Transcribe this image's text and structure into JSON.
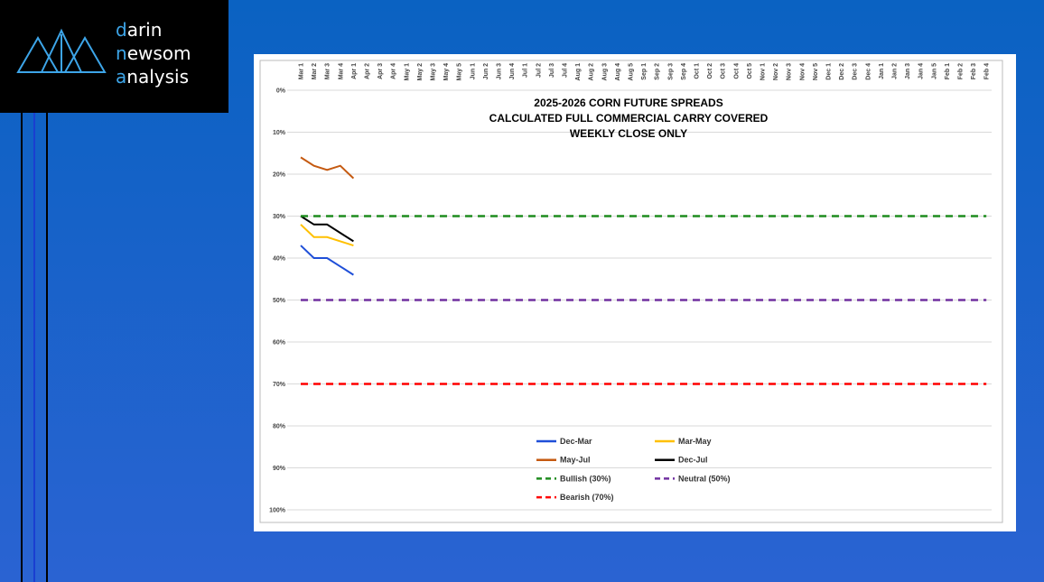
{
  "logo": {
    "lines": [
      "darin",
      "newsom",
      "analysis"
    ]
  },
  "chart_data": {
    "type": "line",
    "title": [
      "2025-2026 CORN FUTURE SPREADS",
      "CALCULATED FULL COMMERCIAL CARRY COVERED",
      "WEEKLY CLOSE ONLY"
    ],
    "categories": [
      "Mar 1",
      "Mar 2",
      "Mar 3",
      "Mar 4",
      "Apr 1",
      "Apr 2",
      "Apr 3",
      "Apr 4",
      "May 1",
      "May 2",
      "May 3",
      "May 4",
      "May 5",
      "Jun 1",
      "Jun 2",
      "Jun 3",
      "Jun 4",
      "Jul 1",
      "Jul 2",
      "Jul 3",
      "Jul 4",
      "Aug 1",
      "Aug 2",
      "Aug 3",
      "Aug 4",
      "Aug 5",
      "Sep 1",
      "Sep 2",
      "Sep 3",
      "Sep 4",
      "Oct 1",
      "Oct 2",
      "Oct 3",
      "Oct 4",
      "Oct 5",
      "Nov 1",
      "Nov 2",
      "Nov 3",
      "Nov 4",
      "Nov 5",
      "Dec 1",
      "Dec 2",
      "Dec 3",
      "Dec 4",
      "Jan 1",
      "Jan 2",
      "Jan 3",
      "Jan 4",
      "Jan 5",
      "Feb 1",
      "Feb 2",
      "Feb 3",
      "Feb 4"
    ],
    "ylim": [
      100,
      0
    ],
    "yticks": [
      {
        "value": 0,
        "label": "0%"
      },
      {
        "value": 10,
        "label": "10%"
      },
      {
        "value": 20,
        "label": "20%"
      },
      {
        "value": 30,
        "label": "30%"
      },
      {
        "value": 40,
        "label": "40%"
      },
      {
        "value": 50,
        "label": "50%"
      },
      {
        "value": 60,
        "label": "60%"
      },
      {
        "value": 70,
        "label": "70%"
      },
      {
        "value": 80,
        "label": "80%"
      },
      {
        "value": 90,
        "label": "90%"
      },
      {
        "value": 100,
        "label": "100%"
      }
    ],
    "grid": true,
    "series": [
      {
        "name": "Dec-Mar",
        "color": "#1f4fd8",
        "dash": false,
        "values": [
          37,
          40,
          40,
          42,
          44,
          null,
          null,
          null,
          null,
          null,
          null,
          null,
          null,
          null,
          null,
          null,
          null,
          null,
          null,
          null,
          null,
          null,
          null,
          null,
          null,
          null,
          null,
          null,
          null,
          null,
          null,
          null,
          null,
          null,
          null,
          null,
          null,
          null,
          null,
          null,
          null,
          null,
          null,
          null,
          null,
          null,
          null,
          null,
          null,
          null,
          null,
          null,
          null
        ]
      },
      {
        "name": "Mar-May",
        "color": "#ffc000",
        "dash": false,
        "values": [
          32,
          35,
          35,
          36,
          37,
          null,
          null,
          null,
          null,
          null,
          null,
          null,
          null,
          null,
          null,
          null,
          null,
          null,
          null,
          null,
          null,
          null,
          null,
          null,
          null,
          null,
          null,
          null,
          null,
          null,
          null,
          null,
          null,
          null,
          null,
          null,
          null,
          null,
          null,
          null,
          null,
          null,
          null,
          null,
          null,
          null,
          null,
          null,
          null,
          null,
          null,
          null,
          null
        ]
      },
      {
        "name": "May-Jul",
        "color": "#c55a11",
        "dash": false,
        "values": [
          16,
          18,
          19,
          18,
          21,
          null,
          null,
          null,
          null,
          null,
          null,
          null,
          null,
          null,
          null,
          null,
          null,
          null,
          null,
          null,
          null,
          null,
          null,
          null,
          null,
          null,
          null,
          null,
          null,
          null,
          null,
          null,
          null,
          null,
          null,
          null,
          null,
          null,
          null,
          null,
          null,
          null,
          null,
          null,
          null,
          null,
          null,
          null,
          null,
          null,
          null,
          null,
          null
        ]
      },
      {
        "name": "Dec-Jul",
        "color": "#000000",
        "dash": false,
        "values": [
          30,
          32,
          32,
          34,
          36,
          null,
          null,
          null,
          null,
          null,
          null,
          null,
          null,
          null,
          null,
          null,
          null,
          null,
          null,
          null,
          null,
          null,
          null,
          null,
          null,
          null,
          null,
          null,
          null,
          null,
          null,
          null,
          null,
          null,
          null,
          null,
          null,
          null,
          null,
          null,
          null,
          null,
          null,
          null,
          null,
          null,
          null,
          null,
          null,
          null,
          null,
          null,
          null
        ]
      },
      {
        "name": "Bullish (30%)",
        "color": "#1e8c1e",
        "dash": true,
        "values": [
          30,
          30,
          30,
          30,
          30,
          30,
          30,
          30,
          30,
          30,
          30,
          30,
          30,
          30,
          30,
          30,
          30,
          30,
          30,
          30,
          30,
          30,
          30,
          30,
          30,
          30,
          30,
          30,
          30,
          30,
          30,
          30,
          30,
          30,
          30,
          30,
          30,
          30,
          30,
          30,
          30,
          30,
          30,
          30,
          30,
          30,
          30,
          30,
          30,
          30,
          30,
          30,
          30
        ]
      },
      {
        "name": "Neutral (50%)",
        "color": "#7030a0",
        "dash": true,
        "values": [
          50,
          50,
          50,
          50,
          50,
          50,
          50,
          50,
          50,
          50,
          50,
          50,
          50,
          50,
          50,
          50,
          50,
          50,
          50,
          50,
          50,
          50,
          50,
          50,
          50,
          50,
          50,
          50,
          50,
          50,
          50,
          50,
          50,
          50,
          50,
          50,
          50,
          50,
          50,
          50,
          50,
          50,
          50,
          50,
          50,
          50,
          50,
          50,
          50,
          50,
          50,
          50,
          50
        ]
      },
      {
        "name": "Bearish (70%)",
        "color": "#ff0000",
        "dash": true,
        "values": [
          70,
          70,
          70,
          70,
          70,
          70,
          70,
          70,
          70,
          70,
          70,
          70,
          70,
          70,
          70,
          70,
          70,
          70,
          70,
          70,
          70,
          70,
          70,
          70,
          70,
          70,
          70,
          70,
          70,
          70,
          70,
          70,
          70,
          70,
          70,
          70,
          70,
          70,
          70,
          70,
          70,
          70,
          70,
          70,
          70,
          70,
          70,
          70,
          70,
          70,
          70,
          70,
          70
        ]
      }
    ]
  }
}
